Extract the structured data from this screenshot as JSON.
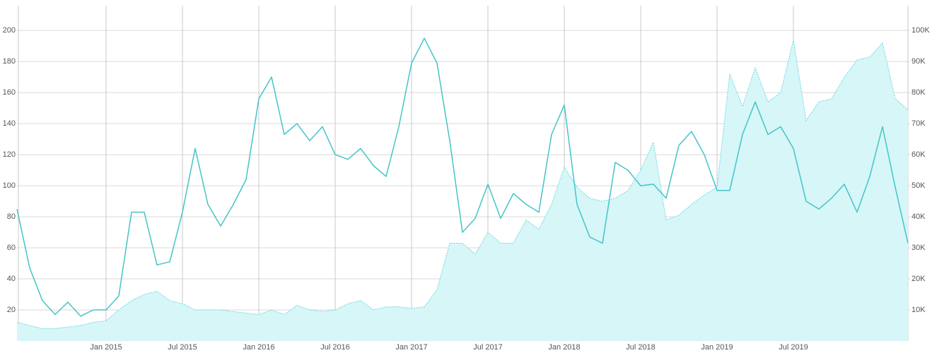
{
  "chart_data": {
    "type": "line-area",
    "x": [
      "2014-06",
      "2014-07",
      "2014-08",
      "2014-09",
      "2014-10",
      "2014-11",
      "2014-12",
      "2015-01",
      "2015-02",
      "2015-03",
      "2015-04",
      "2015-05",
      "2015-06",
      "2015-07",
      "2015-08",
      "2015-09",
      "2015-10",
      "2015-11",
      "2015-12",
      "2016-01",
      "2016-02",
      "2016-03",
      "2016-04",
      "2016-05",
      "2016-06",
      "2016-07",
      "2016-08",
      "2016-09",
      "2016-10",
      "2016-11",
      "2016-12",
      "2017-01",
      "2017-02",
      "2017-03",
      "2017-04",
      "2017-05",
      "2017-06",
      "2017-07",
      "2017-08",
      "2017-09",
      "2017-10",
      "2017-11",
      "2017-12",
      "2018-01",
      "2018-02",
      "2018-03",
      "2018-04",
      "2018-05",
      "2018-06",
      "2018-07",
      "2018-08",
      "2018-09",
      "2018-10",
      "2018-11",
      "2018-12",
      "2019-01",
      "2019-02",
      "2019-03",
      "2019-04",
      "2019-05",
      "2019-06",
      "2019-07",
      "2019-08",
      "2019-09",
      "2019-10",
      "2019-11",
      "2019-12",
      "2020-01",
      "2020-02",
      "2020-03",
      "2020-04"
    ],
    "series": [
      {
        "kind": "area",
        "axis": "y2",
        "color": "#6fd6db",
        "fill": "#d6f6f8",
        "values": [
          6000,
          5000,
          4000,
          4000,
          4500,
          5000,
          6000,
          6500,
          10000,
          13000,
          15000,
          16000,
          13000,
          12000,
          10000,
          10000,
          10000,
          9500,
          9000,
          8500,
          10000,
          8500,
          11500,
          10000,
          9500,
          10000,
          12000,
          13000,
          10000,
          11000,
          11000,
          10500,
          11000,
          16500,
          31500,
          31500,
          28000,
          35000,
          31500,
          31500,
          39000,
          36000,
          44000,
          56000,
          49500,
          46000,
          45000,
          46000,
          48500,
          55000,
          64000,
          39000,
          40500,
          44000,
          47000,
          49500,
          86000,
          75500,
          88000,
          77000,
          80000,
          97000,
          71000,
          77000,
          78000,
          85000,
          90500,
          91500,
          96000,
          78000,
          74500
        ]
      },
      {
        "kind": "line",
        "color": "#45c4c6",
        "values": [
          85,
          47,
          26,
          17,
          25,
          16,
          20,
          20,
          29,
          83,
          83,
          49,
          51,
          83,
          124,
          88,
          74,
          88,
          104,
          156,
          170,
          133,
          140,
          129,
          138,
          120,
          117,
          124,
          113,
          106,
          138,
          179,
          195,
          179,
          129,
          70,
          79,
          101,
          79,
          95,
          88,
          83,
          133,
          152,
          88,
          67,
          63,
          115,
          110,
          100,
          101,
          92,
          126,
          135,
          120,
          97,
          97,
          133,
          154,
          133,
          138,
          124,
          90,
          85,
          92,
          101,
          83,
          106,
          138,
          99,
          63
        ]
      }
    ],
    "xlim": [
      "2014-06",
      "2020-04"
    ],
    "xticks": [
      {
        "value": "2015-01",
        "label": "Jan 2015"
      },
      {
        "value": "2015-07",
        "label": "Jul 2015"
      },
      {
        "value": "2016-01",
        "label": "Jan 2016"
      },
      {
        "value": "2016-07",
        "label": "Jul 2016"
      },
      {
        "value": "2017-01",
        "label": "Jan 2017"
      },
      {
        "value": "2017-07",
        "label": "Jul 2017"
      },
      {
        "value": "2018-01",
        "label": "Jan 2018"
      },
      {
        "value": "2018-07",
        "label": "Jul 2018"
      },
      {
        "value": "2019-01",
        "label": "Jan 2019"
      },
      {
        "value": "2019-07",
        "label": "Jul 2019"
      }
    ],
    "ylim": [
      0,
      216
    ],
    "yticks": [
      20,
      40,
      60,
      80,
      100,
      120,
      140,
      160,
      180,
      200
    ],
    "y2lim": [
      0,
      108000
    ],
    "y2ticks": [
      {
        "value": 10000,
        "label": "10K"
      },
      {
        "value": 20000,
        "label": "20K"
      },
      {
        "value": 30000,
        "label": "30K"
      },
      {
        "value": 40000,
        "label": "40K"
      },
      {
        "value": 50000,
        "label": "50K"
      },
      {
        "value": 60000,
        "label": "60K"
      },
      {
        "value": 70000,
        "label": "70K"
      },
      {
        "value": 80000,
        "label": "80K"
      },
      {
        "value": 90000,
        "label": "90K"
      },
      {
        "value": 100000,
        "label": "100K"
      }
    ],
    "grid": true
  }
}
